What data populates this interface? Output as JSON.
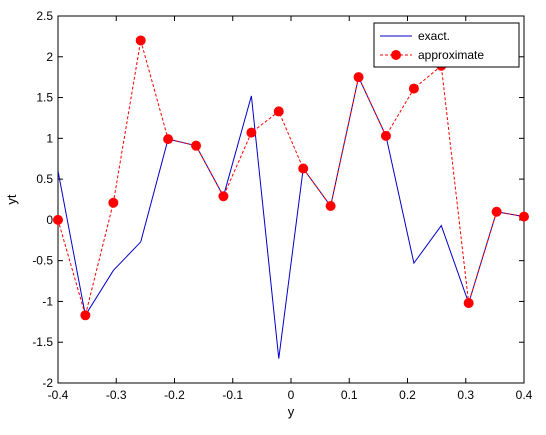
{
  "chart_data": {
    "type": "line",
    "xlabel": "y",
    "ylabel": "yt",
    "xlim": [
      -0.4,
      0.4
    ],
    "ylim": [
      -2,
      2.5
    ],
    "xticks": [
      "-0.4",
      "-0.3",
      "-0.2",
      "-0.1",
      "0",
      "0.1",
      "0.2",
      "0.3",
      "0.4"
    ],
    "xtick_values": [
      -0.4,
      -0.3,
      -0.2,
      -0.1,
      0,
      0.1,
      0.2,
      0.3,
      0.4
    ],
    "yticks": [
      "-2",
      "-1.5",
      "-1",
      "-0.5",
      "0",
      "0.5",
      "1",
      "1.5",
      "2",
      "2.5"
    ],
    "ytick_values": [
      -2,
      -1.5,
      -1,
      -0.5,
      0,
      0.5,
      1,
      1.5,
      2,
      2.5
    ],
    "grid": false,
    "legend_position": "top-right",
    "series": [
      {
        "name": "exact.",
        "color": "#0000c8",
        "style": "solid",
        "x": [
          -0.4,
          -0.353,
          -0.305,
          -0.258,
          -0.211,
          -0.163,
          -0.116,
          -0.068,
          -0.021,
          0.021,
          0.068,
          0.116,
          0.163,
          0.211,
          0.258,
          0.305,
          0.353,
          0.4
        ],
        "y": [
          0.6,
          -1.17,
          -0.62,
          -0.27,
          0.99,
          0.91,
          0.29,
          1.52,
          -1.7,
          0.63,
          0.17,
          1.75,
          1.03,
          -0.53,
          -0.07,
          -1.02,
          0.1,
          0.04
        ]
      },
      {
        "name": "approximate",
        "color": "#ff0000",
        "style": "dashed",
        "marker": "circle",
        "x": [
          -0.4,
          -0.353,
          -0.305,
          -0.258,
          -0.211,
          -0.163,
          -0.116,
          -0.068,
          -0.021,
          0.021,
          0.068,
          0.116,
          0.163,
          0.211,
          0.258,
          0.305,
          0.353,
          0.4
        ],
        "y": [
          0.0,
          -1.17,
          0.21,
          2.2,
          0.99,
          0.91,
          0.29,
          1.07,
          1.33,
          0.63,
          0.17,
          1.75,
          1.03,
          1.61,
          1.89,
          -1.02,
          0.1,
          0.04
        ]
      }
    ]
  }
}
